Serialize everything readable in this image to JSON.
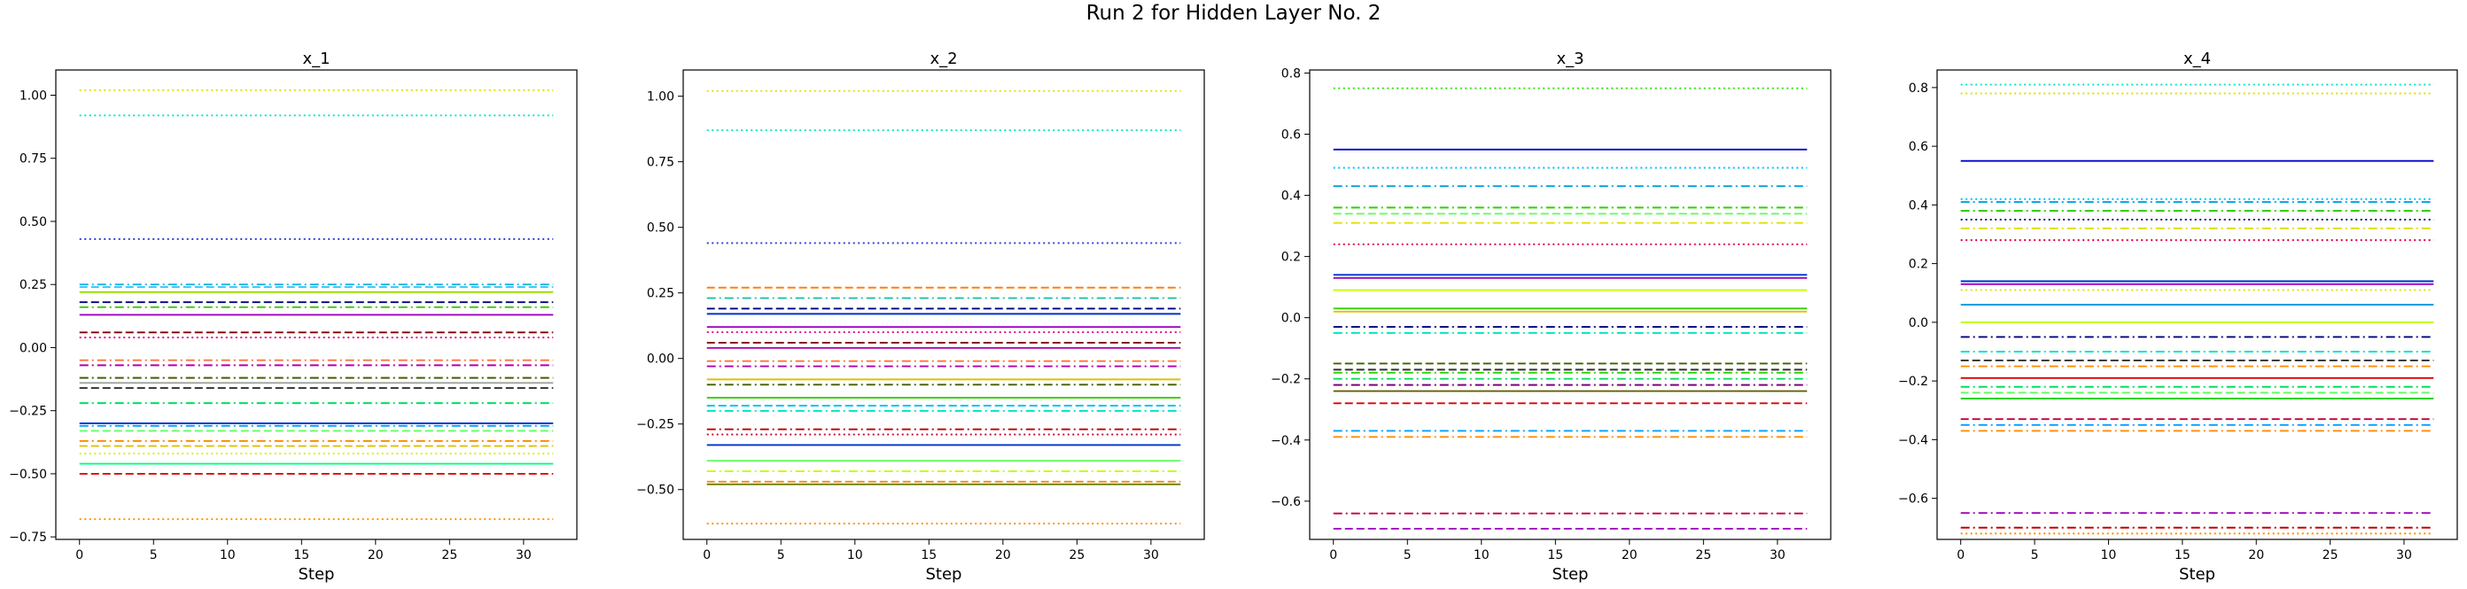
{
  "figure": {
    "title": "Run 2 for Hidden Layer No. 2"
  },
  "chart_data": [
    {
      "type": "line",
      "title": "x_1",
      "xlabel": "Step",
      "ylabel": "",
      "x_range": [
        0,
        32
      ],
      "xlim": [
        -1.6,
        33.6
      ],
      "ylim": [
        -0.76,
        1.1
      ],
      "xticks": [
        0,
        5,
        10,
        15,
        20,
        25,
        30
      ],
      "yticks": [
        -0.75,
        -0.5,
        -0.25,
        0.0,
        0.25,
        0.5,
        0.75,
        1.0
      ],
      "ytick_labels": [
        "−0.75",
        "−0.50",
        "−0.25",
        "0.00",
        "0.25",
        "0.50",
        "0.75",
        "1.00"
      ],
      "grid": false,
      "series": [
        {
          "value": 1.02,
          "color": "#e0e000",
          "style": "dotted"
        },
        {
          "value": 0.92,
          "color": "#00e5c0",
          "style": "dotted"
        },
        {
          "value": 0.43,
          "color": "#2a3ad8",
          "style": "dotted"
        },
        {
          "value": 0.25,
          "color": "#1fb0e0",
          "style": "dashdot"
        },
        {
          "value": 0.24,
          "color": "#30c8ff",
          "style": "dashed"
        },
        {
          "value": 0.22,
          "color": "#98e000",
          "style": "solid"
        },
        {
          "value": 0.18,
          "color": "#000080",
          "style": "dashed"
        },
        {
          "value": 0.16,
          "color": "#30d000",
          "style": "dashdot"
        },
        {
          "value": 0.13,
          "color": "#a000c0",
          "style": "solid"
        },
        {
          "value": 0.06,
          "color": "#800000",
          "style": "dashed"
        },
        {
          "value": 0.04,
          "color": "#e00080",
          "style": "dotted"
        },
        {
          "value": -0.05,
          "color": "#ff7040",
          "style": "dashdot"
        },
        {
          "value": -0.07,
          "color": "#b000b0",
          "style": "dashdot"
        },
        {
          "value": -0.12,
          "color": "#406000",
          "style": "dashdot"
        },
        {
          "value": -0.14,
          "color": "#a0a0a0",
          "style": "solid"
        },
        {
          "value": -0.16,
          "color": "#303030",
          "style": "dashed"
        },
        {
          "value": -0.22,
          "color": "#00e060",
          "style": "dashdot"
        },
        {
          "value": -0.3,
          "color": "#0030d0",
          "style": "solid"
        },
        {
          "value": -0.31,
          "color": "#00a0ff",
          "style": "dashdot"
        },
        {
          "value": -0.33,
          "color": "#60ff60",
          "style": "dashed"
        },
        {
          "value": -0.37,
          "color": "#ff8c00",
          "style": "dashdot"
        },
        {
          "value": -0.39,
          "color": "#e0c000",
          "style": "dashed"
        },
        {
          "value": -0.42,
          "color": "#c0ff00",
          "style": "dotted"
        },
        {
          "value": -0.46,
          "color": "#00ff80",
          "style": "solid"
        },
        {
          "value": -0.5,
          "color": "#e00000",
          "style": "dashed"
        },
        {
          "value": -0.68,
          "color": "#ff8c00",
          "style": "dotted"
        }
      ]
    },
    {
      "type": "line",
      "title": "x_2",
      "xlabel": "Step",
      "ylabel": "",
      "x_range": [
        0,
        32
      ],
      "xlim": [
        -1.6,
        33.6
      ],
      "ylim": [
        -0.69,
        1.1
      ],
      "xticks": [
        0,
        5,
        10,
        15,
        20,
        25,
        30
      ],
      "yticks": [
        -0.5,
        -0.25,
        0.0,
        0.25,
        0.5,
        0.75,
        1.0
      ],
      "ytick_labels": [
        "−0.50",
        "−0.25",
        "0.00",
        "0.25",
        "0.50",
        "0.75",
        "1.00"
      ],
      "grid": false,
      "series": [
        {
          "value": 1.02,
          "color": "#e0e000",
          "style": "dotted"
        },
        {
          "value": 0.87,
          "color": "#00e5c0",
          "style": "dotted"
        },
        {
          "value": 0.44,
          "color": "#2a3ad8",
          "style": "dotted"
        },
        {
          "value": 0.27,
          "color": "#ff7f0e",
          "style": "dashed"
        },
        {
          "value": 0.23,
          "color": "#20c0a0",
          "style": "dashdot"
        },
        {
          "value": 0.19,
          "color": "#000080",
          "style": "dashed"
        },
        {
          "value": 0.17,
          "color": "#0030d0",
          "style": "solid"
        },
        {
          "value": 0.12,
          "color": "#a000c0",
          "style": "solid"
        },
        {
          "value": 0.1,
          "color": "#e00080",
          "style": "dotted"
        },
        {
          "value": 0.06,
          "color": "#800000",
          "style": "dashed"
        },
        {
          "value": 0.04,
          "color": "#b000b0",
          "style": "solid"
        },
        {
          "value": -0.01,
          "color": "#ff7040",
          "style": "dashdot"
        },
        {
          "value": -0.03,
          "color": "#b000b0",
          "style": "dashdot"
        },
        {
          "value": -0.08,
          "color": "#e0c000",
          "style": "solid"
        },
        {
          "value": -0.1,
          "color": "#406000",
          "style": "dashdot"
        },
        {
          "value": -0.15,
          "color": "#30d000",
          "style": "solid"
        },
        {
          "value": -0.18,
          "color": "#00c0ff",
          "style": "dashed"
        },
        {
          "value": -0.2,
          "color": "#00e5c0",
          "style": "dashdot"
        },
        {
          "value": -0.27,
          "color": "#c00000",
          "style": "dashdot"
        },
        {
          "value": -0.29,
          "color": "#c00040",
          "style": "dotted"
        },
        {
          "value": -0.33,
          "color": "#0030d0",
          "style": "solid"
        },
        {
          "value": -0.39,
          "color": "#60ff60",
          "style": "solid"
        },
        {
          "value": -0.43,
          "color": "#c0ff00",
          "style": "dashdot"
        },
        {
          "value": -0.47,
          "color": "#ff8c00",
          "style": "dashed"
        },
        {
          "value": -0.48,
          "color": "#6a8000",
          "style": "solid"
        },
        {
          "value": -0.63,
          "color": "#ff8c00",
          "style": "dotted"
        }
      ]
    },
    {
      "type": "line",
      "title": "x_3",
      "xlabel": "Step",
      "ylabel": "",
      "x_range": [
        0,
        32
      ],
      "xlim": [
        -1.6,
        33.6
      ],
      "ylim": [
        -0.725,
        0.81
      ],
      "xticks": [
        0,
        5,
        10,
        15,
        20,
        25,
        30
      ],
      "yticks": [
        -0.6,
        -0.4,
        -0.2,
        0.0,
        0.2,
        0.4,
        0.6,
        0.8
      ],
      "ytick_labels": [
        "−0.6",
        "−0.4",
        "−0.2",
        "0.0",
        "0.2",
        "0.4",
        "0.6",
        "0.8"
      ],
      "grid": false,
      "series": [
        {
          "value": 0.75,
          "color": "#30e000",
          "style": "dotted"
        },
        {
          "value": 0.55,
          "color": "#0000d0",
          "style": "solid"
        },
        {
          "value": 0.49,
          "color": "#00c0ff",
          "style": "dotted"
        },
        {
          "value": 0.43,
          "color": "#00a0e0",
          "style": "dashdot"
        },
        {
          "value": 0.36,
          "color": "#30d000",
          "style": "dashdot"
        },
        {
          "value": 0.34,
          "color": "#60ff60",
          "style": "dashed"
        },
        {
          "value": 0.31,
          "color": "#e0e000",
          "style": "dashdot"
        },
        {
          "value": 0.24,
          "color": "#e00040",
          "style": "dotted"
        },
        {
          "value": 0.14,
          "color": "#0030d0",
          "style": "solid"
        },
        {
          "value": 0.13,
          "color": "#a000c0",
          "style": "solid"
        },
        {
          "value": 0.09,
          "color": "#c0ff00",
          "style": "solid"
        },
        {
          "value": 0.03,
          "color": "#30d000",
          "style": "solid"
        },
        {
          "value": 0.02,
          "color": "#e0c000",
          "style": "solid"
        },
        {
          "value": -0.03,
          "color": "#000080",
          "style": "dashdot"
        },
        {
          "value": -0.05,
          "color": "#00e5c0",
          "style": "dashdot"
        },
        {
          "value": -0.15,
          "color": "#406000",
          "style": "dashed"
        },
        {
          "value": -0.17,
          "color": "#303030",
          "style": "dashed"
        },
        {
          "value": -0.18,
          "color": "#30d000",
          "style": "dashdot"
        },
        {
          "value": -0.2,
          "color": "#00e060",
          "style": "dashdot"
        },
        {
          "value": -0.22,
          "color": "#800080",
          "style": "dashdot"
        },
        {
          "value": -0.24,
          "color": "#606000",
          "style": "solid"
        },
        {
          "value": -0.28,
          "color": "#e00000",
          "style": "dashed"
        },
        {
          "value": -0.37,
          "color": "#00a0ff",
          "style": "dashdot"
        },
        {
          "value": -0.39,
          "color": "#ff8c00",
          "style": "dashdot"
        },
        {
          "value": -0.64,
          "color": "#c00040",
          "style": "dashdot"
        },
        {
          "value": -0.69,
          "color": "#a000c0",
          "style": "dashed"
        }
      ]
    },
    {
      "type": "line",
      "title": "x_4",
      "xlabel": "Step",
      "ylabel": "",
      "x_range": [
        0,
        32
      ],
      "xlim": [
        -1.6,
        33.6
      ],
      "ylim": [
        -0.74,
        0.86
      ],
      "xticks": [
        0,
        5,
        10,
        15,
        20,
        25,
        30
      ],
      "yticks": [
        -0.6,
        -0.4,
        -0.2,
        0.0,
        0.2,
        0.4,
        0.6,
        0.8
      ],
      "ytick_labels": [
        "−0.6",
        "−0.4",
        "−0.2",
        "0.0",
        "0.2",
        "0.4",
        "0.6",
        "0.8"
      ],
      "grid": false,
      "series": [
        {
          "value": 0.81,
          "color": "#00e5c0",
          "style": "dotted"
        },
        {
          "value": 0.78,
          "color": "#e0e000",
          "style": "dotted"
        },
        {
          "value": 0.55,
          "color": "#0000d0",
          "style": "solid"
        },
        {
          "value": 0.42,
          "color": "#00c0ff",
          "style": "dotted"
        },
        {
          "value": 0.41,
          "color": "#00a0e0",
          "style": "dashdot"
        },
        {
          "value": 0.38,
          "color": "#30d000",
          "style": "dashdot"
        },
        {
          "value": 0.35,
          "color": "#000080",
          "style": "dotted"
        },
        {
          "value": 0.32,
          "color": "#e0e000",
          "style": "dashdot"
        },
        {
          "value": 0.28,
          "color": "#e00040",
          "style": "dotted"
        },
        {
          "value": 0.14,
          "color": "#0030d0",
          "style": "solid"
        },
        {
          "value": 0.13,
          "color": "#a000c0",
          "style": "solid"
        },
        {
          "value": 0.11,
          "color": "#e0e000",
          "style": "dotted"
        },
        {
          "value": 0.06,
          "color": "#00a0e0",
          "style": "solid"
        },
        {
          "value": 0.0,
          "color": "#c0ff00",
          "style": "solid"
        },
        {
          "value": -0.05,
          "color": "#000080",
          "style": "dashdot"
        },
        {
          "value": -0.1,
          "color": "#00e5c0",
          "style": "dashdot"
        },
        {
          "value": -0.13,
          "color": "#303030",
          "style": "dashed"
        },
        {
          "value": -0.15,
          "color": "#ff8c00",
          "style": "dashdot"
        },
        {
          "value": -0.19,
          "color": "#e00000",
          "style": "solid"
        },
        {
          "value": -0.22,
          "color": "#00e060",
          "style": "dashdot"
        },
        {
          "value": -0.24,
          "color": "#60ff60",
          "style": "dashed"
        },
        {
          "value": -0.26,
          "color": "#30d000",
          "style": "solid"
        },
        {
          "value": -0.33,
          "color": "#c00040",
          "style": "dashed"
        },
        {
          "value": -0.35,
          "color": "#00a0ff",
          "style": "dashdot"
        },
        {
          "value": -0.37,
          "color": "#ff8c00",
          "style": "dashdot"
        },
        {
          "value": -0.65,
          "color": "#a000c0",
          "style": "dashdot"
        },
        {
          "value": -0.7,
          "color": "#c00000",
          "style": "dashdot"
        },
        {
          "value": -0.72,
          "color": "#ff8c00",
          "style": "dotted"
        }
      ]
    }
  ]
}
